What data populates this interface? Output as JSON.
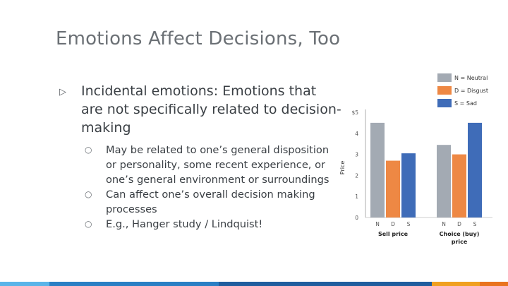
{
  "slide": {
    "title": "Emotions Affect Decisions, Too",
    "bullet_marker": "▷",
    "sub_marker": "○",
    "main_bullet": "Incidental emotions: Emotions that are not specifically related to decision-making",
    "sub_bullets": [
      "May be related to one’s general disposition or personality, some recent experience, or one’s general environment or surroundings",
      "Can affect one’s overall decision making processes",
      "E.g., Hanger study / Lindquist!"
    ]
  },
  "colors": {
    "neutral": "#a3aab3",
    "disgust": "#ee8844",
    "sad": "#3f6cb8",
    "footer": [
      "#5ab4e8",
      "#2a7fc4",
      "#1f5d9e",
      "#f0a020",
      "#e9731e"
    ]
  },
  "chart_data": {
    "type": "bar",
    "ylabel": "Price",
    "ylim": [
      0,
      5
    ],
    "yticks": [
      "0",
      "1",
      "2",
      "3",
      "4",
      "$5"
    ],
    "groups": [
      {
        "label_line1": "Sell price",
        "label_line2": ""
      },
      {
        "label_line1": "Choice (buy)",
        "label_line2": "price"
      }
    ],
    "bar_letters": [
      "N",
      "D",
      "S"
    ],
    "series": [
      {
        "name": "N = Neutral",
        "values": [
          4.5,
          3.45
        ]
      },
      {
        "name": "D = Disgust",
        "values": [
          2.7,
          3.0
        ]
      },
      {
        "name": "S = Sad",
        "values": [
          3.05,
          4.5
        ]
      }
    ]
  }
}
